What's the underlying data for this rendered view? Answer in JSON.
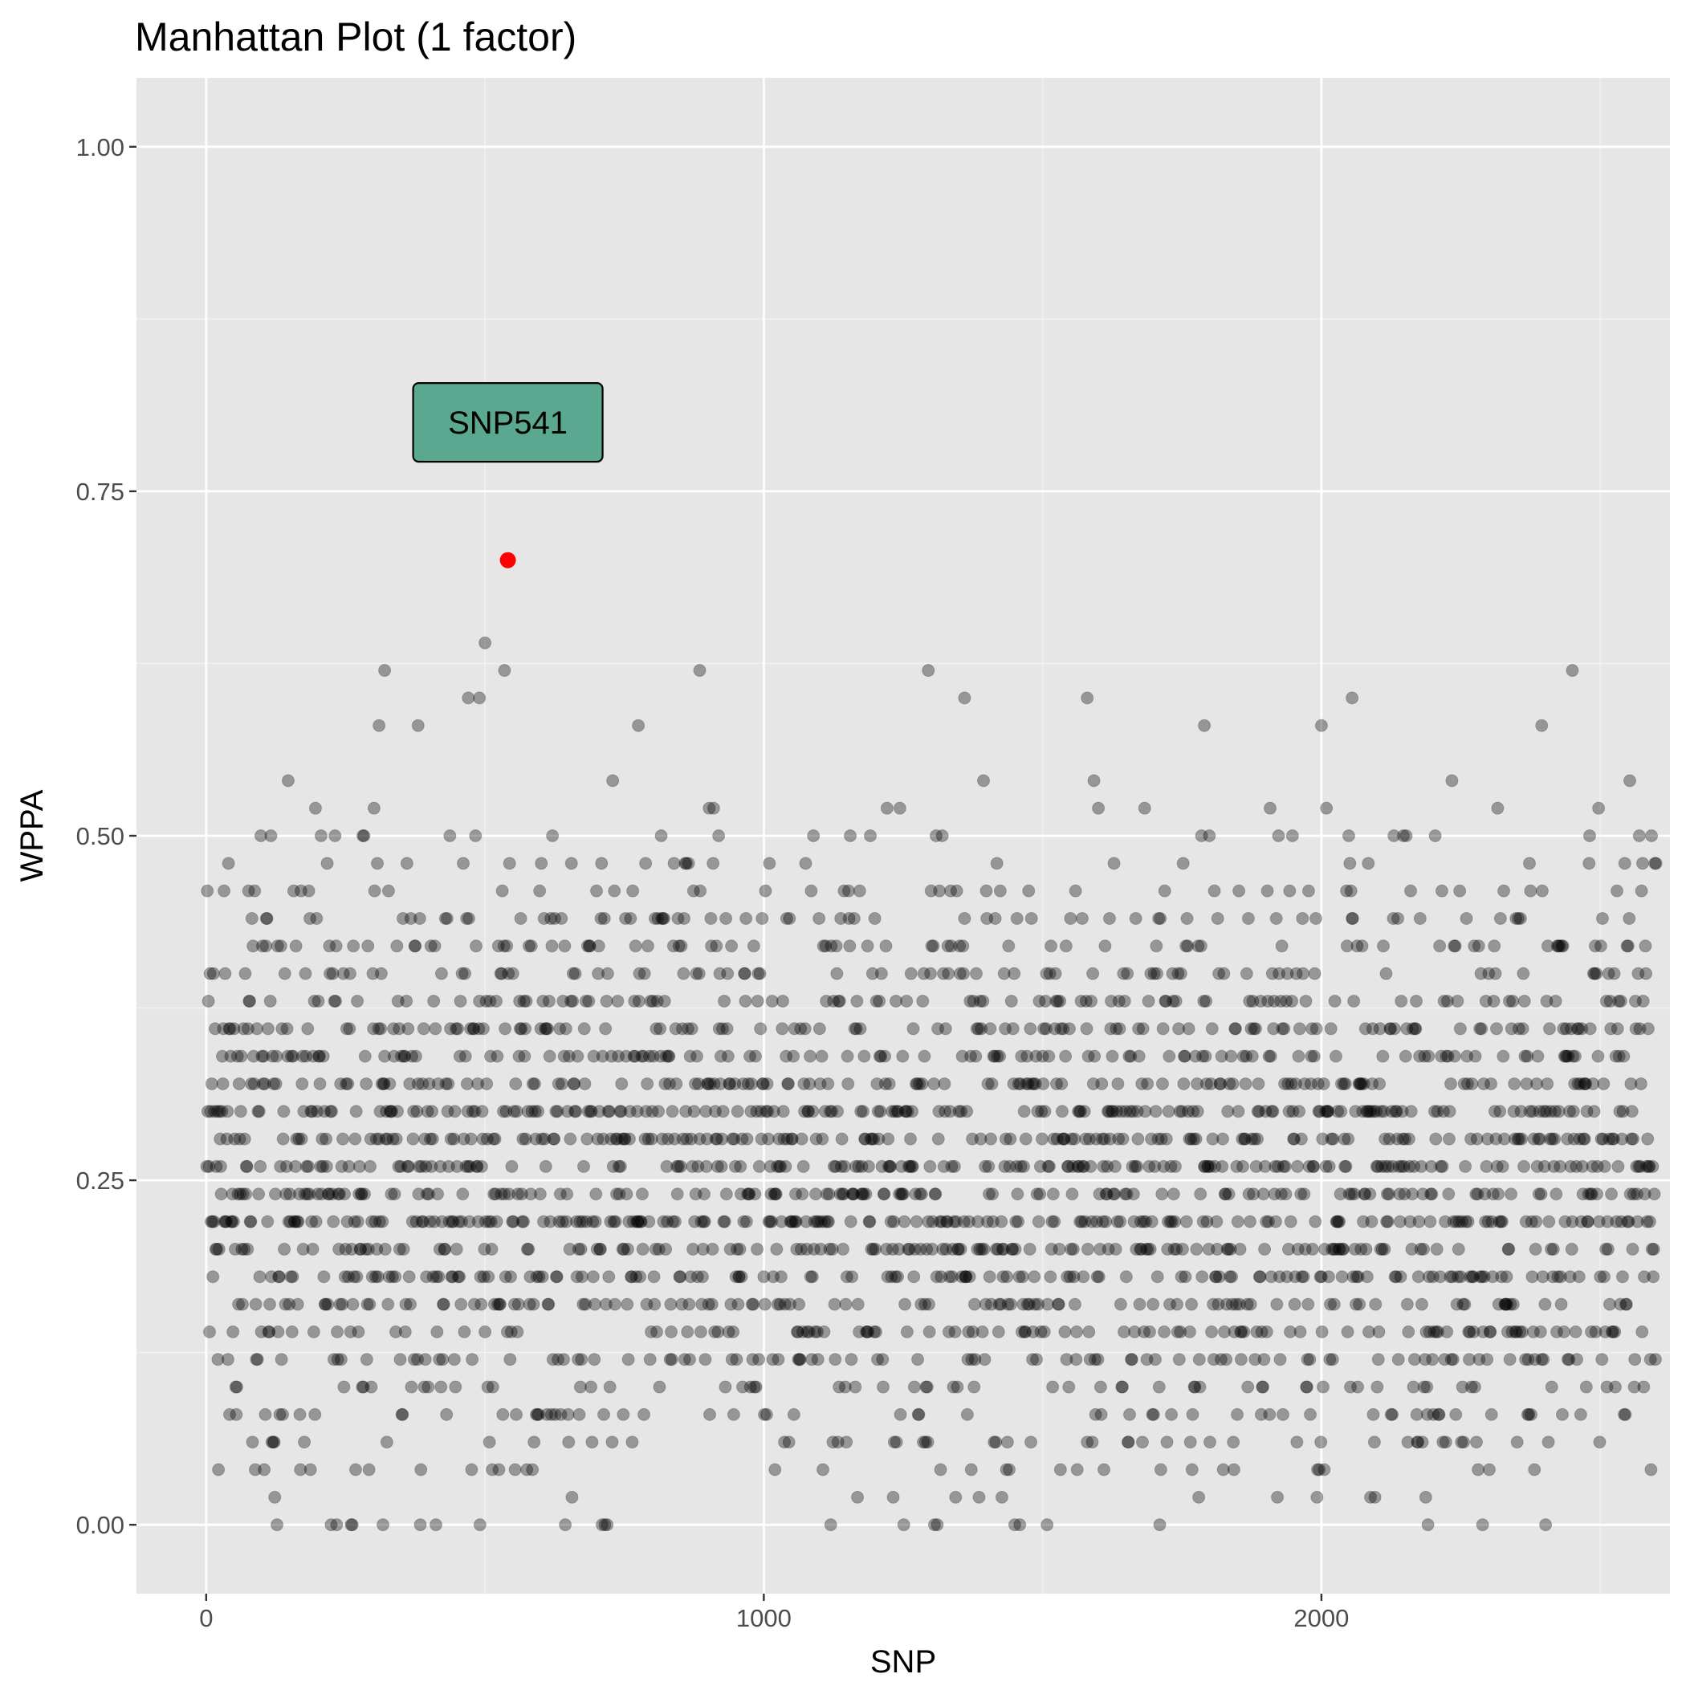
{
  "chart_data": {
    "type": "scatter",
    "title": "Manhattan Plot (1 factor)",
    "xlabel": "SNP",
    "ylabel": "WPPA",
    "xlim": [
      -125,
      2625
    ],
    "ylim": [
      -0.05,
      1.05
    ],
    "x_ticks": [
      0,
      1000,
      2000
    ],
    "x_tick_labels": [
      "0",
      "1000",
      "2000"
    ],
    "y_ticks": [
      0,
      0.25,
      0.5,
      0.75,
      1.0
    ],
    "y_tick_labels": [
      "0.00",
      "0.25",
      "0.50",
      "0.75",
      "1.00"
    ],
    "grid": true,
    "n_snps": 2600,
    "point_color": "#000000",
    "point_opacity": 0.35,
    "highlight": {
      "label": "SNP541",
      "x": 541,
      "y": 0.7,
      "color": "#ff0000",
      "label_y": 0.8,
      "label_fill": "#5aa88f"
    },
    "notable_points": [
      {
        "x": 500,
        "y": 0.64
      },
      {
        "x": 535,
        "y": 0.62
      },
      {
        "x": 320,
        "y": 0.62
      },
      {
        "x": 885,
        "y": 0.62
      },
      {
        "x": 1295,
        "y": 0.62
      },
      {
        "x": 2450,
        "y": 0.62
      },
      {
        "x": 1360,
        "y": 0.6
      },
      {
        "x": 1580,
        "y": 0.6
      },
      {
        "x": 2055,
        "y": 0.6
      },
      {
        "x": 490,
        "y": 0.6
      },
      {
        "x": 470,
        "y": 0.6
      },
      {
        "x": 310,
        "y": 0.58
      },
      {
        "x": 380,
        "y": 0.58
      },
      {
        "x": 775,
        "y": 0.58
      },
      {
        "x": 1790,
        "y": 0.58
      },
      {
        "x": 2000,
        "y": 0.58
      },
      {
        "x": 2395,
        "y": 0.58
      }
    ]
  }
}
